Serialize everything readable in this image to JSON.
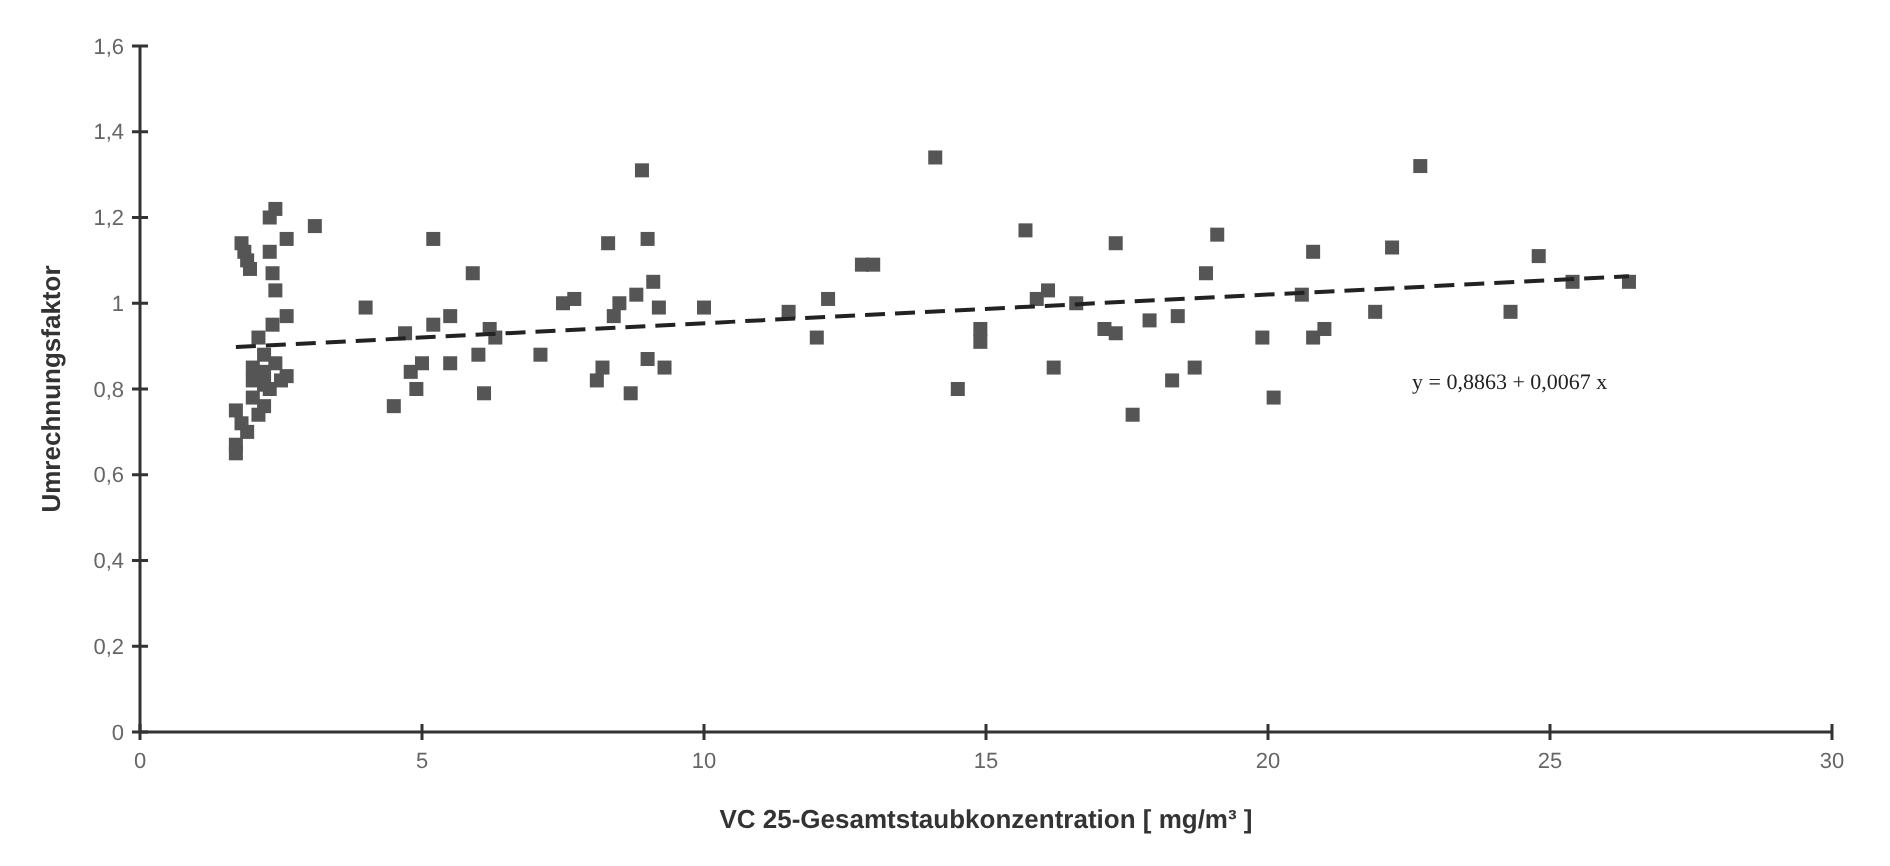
{
  "chart_data": {
    "type": "scatter",
    "xlabel": "VC 25-Gesamtstaubkonzentration [ mg/m³ ]",
    "ylabel": "Umrechnungsfaktor",
    "annotations": [
      "y = 0,8863 + 0,0067 x"
    ],
    "marker": "square",
    "grid": false,
    "xlim": [
      0,
      30
    ],
    "xticks": [
      0,
      5,
      10,
      15,
      20,
      25,
      30
    ],
    "ylim": [
      0,
      1.6
    ],
    "yticks": [
      0,
      {
        "value": 0.2,
        "label": "0,2"
      },
      {
        "value": 0.4,
        "label": "0,4"
      },
      {
        "value": 0.6,
        "label": "0,6"
      },
      {
        "value": 0.8,
        "label": "0,8"
      },
      1,
      {
        "value": 1.2,
        "label": "1,2"
      },
      {
        "value": 1.4,
        "label": "1,4"
      },
      {
        "value": 1.6,
        "label": "1,6"
      }
    ],
    "series": [
      {
        "color": "#555555",
        "x": [
          1.7,
          1.7,
          1.7,
          1.8,
          1.9,
          1.8,
          1.85,
          1.9,
          1.95,
          2.0,
          2.0,
          2.1,
          2.2,
          2.1,
          2.2,
          2.2,
          2.3,
          2.3,
          2.4,
          2.3,
          2.35,
          2.4,
          2.35,
          2.6,
          2.6,
          2.4,
          2.6,
          2.5,
          3.1,
          2.2,
          2.0,
          4.0,
          4.5,
          4.7,
          4.8,
          4.9,
          5.0,
          5.2,
          5.2,
          5.5,
          5.5,
          5.9,
          6.0,
          6.1,
          6.2,
          6.3,
          7.1,
          7.5,
          7.7,
          8.1,
          8.2,
          8.3,
          8.5,
          8.4,
          8.7,
          8.8,
          8.9,
          9.0,
          9.0,
          9.1,
          9.2,
          9.3,
          10.0,
          11.5,
          12.0,
          12.2,
          12.8,
          13.0,
          14.1,
          14.5,
          14.9,
          14.9,
          15.7,
          15.9,
          16.1,
          16.2,
          16.6,
          17.1,
          17.3,
          17.3,
          17.6,
          17.9,
          18.3,
          18.4,
          18.7,
          18.9,
          19.1,
          19.9,
          20.1,
          20.6,
          20.8,
          20.8,
          21.0,
          21.9,
          22.2,
          22.7,
          24.3,
          24.8,
          25.4,
          26.4
        ],
        "values": [
          0.65,
          0.67,
          0.75,
          0.72,
          0.7,
          1.14,
          1.12,
          1.1,
          1.08,
          0.82,
          0.78,
          0.74,
          0.76,
          0.92,
          0.88,
          0.84,
          0.8,
          1.2,
          1.22,
          1.12,
          1.07,
          1.03,
          0.95,
          1.15,
          0.97,
          0.86,
          0.83,
          0.82,
          1.18,
          0.81,
          0.85,
          0.99,
          0.76,
          0.93,
          0.84,
          0.8,
          0.86,
          1.15,
          0.95,
          0.97,
          0.86,
          1.07,
          0.88,
          0.79,
          0.94,
          0.92,
          0.88,
          1.0,
          1.01,
          0.82,
          0.85,
          1.14,
          1.0,
          0.97,
          0.79,
          1.02,
          1.31,
          1.15,
          0.87,
          1.05,
          0.99,
          0.85,
          0.99,
          0.98,
          0.92,
          1.01,
          1.09,
          1.09,
          1.34,
          0.8,
          0.94,
          0.91,
          1.17,
          1.01,
          1.03,
          0.85,
          1.0,
          0.94,
          1.14,
          0.93,
          0.74,
          0.96,
          0.82,
          0.97,
          0.85,
          1.07,
          1.16,
          0.92,
          0.78,
          1.02,
          1.12,
          0.92,
          0.94,
          0.98,
          1.13,
          1.32,
          0.98,
          1.11,
          1.05,
          1.05
        ]
      },
      {
        "type": "line",
        "color": "#222222",
        "line_style": "dashed",
        "marker": "none",
        "x": [
          1.7,
          26.4
        ],
        "values": [
          0.898,
          1.063
        ]
      }
    ]
  }
}
